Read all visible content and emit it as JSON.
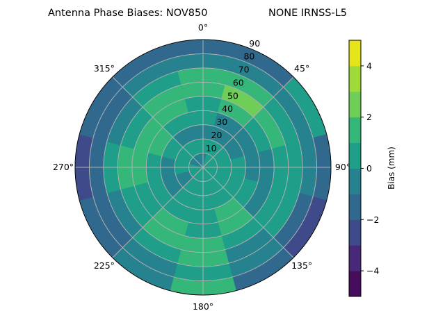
{
  "chart_data": {
    "type": "heatmap",
    "projection": "polar",
    "title_left": "Antenna Phase Biases: NOV850",
    "title_right": "NONE IRNSS-L5",
    "theta_direction": "clockwise",
    "theta_zero": "top",
    "theta_ticks": [
      "0°",
      "45°",
      "90°",
      "135°",
      "180°",
      "225°",
      "270°",
      "315°"
    ],
    "r_ticks": [
      "10",
      "20",
      "30",
      "40",
      "50",
      "60",
      "70",
      "80",
      "90"
    ],
    "r_range": [
      0,
      90
    ],
    "grid": true,
    "colorbar": {
      "label": "Bias (mm)",
      "levels": [
        -5,
        -4,
        -3,
        -2,
        -1,
        0,
        1,
        2,
        3,
        4,
        5
      ],
      "ticks": [
        "−4",
        "−2",
        "0",
        "2",
        "4"
      ],
      "colors": [
        "#450d5c",
        "#482979",
        "#3e4a89",
        "#31688e",
        "#26828e",
        "#1f9e89",
        "#35b779",
        "#6ece58",
        "#a0da39",
        "#e5e419"
      ]
    },
    "azimuth_deg": [
      0,
      30,
      60,
      90,
      120,
      150,
      180,
      210,
      240,
      270,
      300,
      330
    ],
    "zenith_deg": [
      5,
      15,
      25,
      35,
      45,
      55,
      65,
      75,
      85
    ],
    "bias_mm": [
      [
        -0.5,
        0.5,
        -0.5,
        0.5,
        0.5,
        1.5,
        1.5,
        -0.5,
        -1.5
      ],
      [
        0.5,
        0.5,
        -0.5,
        -0.5,
        1.5,
        2.5,
        1.5,
        -0.5,
        -1.5
      ],
      [
        0.5,
        0.5,
        -0.5,
        -0.5,
        0.5,
        1.5,
        0.5,
        -0.5,
        0.5
      ],
      [
        0.5,
        0.5,
        0.5,
        -0.5,
        -0.5,
        0.5,
        0.5,
        -0.5,
        -1.5
      ],
      [
        0.5,
        0.5,
        0.5,
        0.5,
        -0.5,
        0.5,
        0.5,
        -1.5,
        -2.5
      ],
      [
        0.5,
        0.5,
        0.5,
        1.5,
        1.5,
        0.5,
        -0.5,
        -0.5,
        -1.5
      ],
      [
        0.5,
        0.5,
        0.5,
        0.5,
        0.5,
        1.5,
        1.5,
        0.5,
        1.5
      ],
      [
        0.5,
        0.5,
        0.5,
        0.5,
        1.5,
        1.5,
        0.5,
        -0.5,
        -0.5
      ],
      [
        0.5,
        -0.5,
        -0.5,
        0.5,
        0.5,
        0.5,
        -0.5,
        -1.5,
        -1.5
      ],
      [
        0.5,
        0.5,
        -0.5,
        0.5,
        1.5,
        1.5,
        0.5,
        -1.5,
        -2.5
      ],
      [
        -0.5,
        0.5,
        0.5,
        1.5,
        1.5,
        0.5,
        -0.5,
        -1.5,
        -1.5
      ],
      [
        -0.5,
        0.5,
        -0.5,
        0.5,
        1.5,
        1.5,
        0.5,
        -0.5,
        -1.5
      ]
    ]
  }
}
